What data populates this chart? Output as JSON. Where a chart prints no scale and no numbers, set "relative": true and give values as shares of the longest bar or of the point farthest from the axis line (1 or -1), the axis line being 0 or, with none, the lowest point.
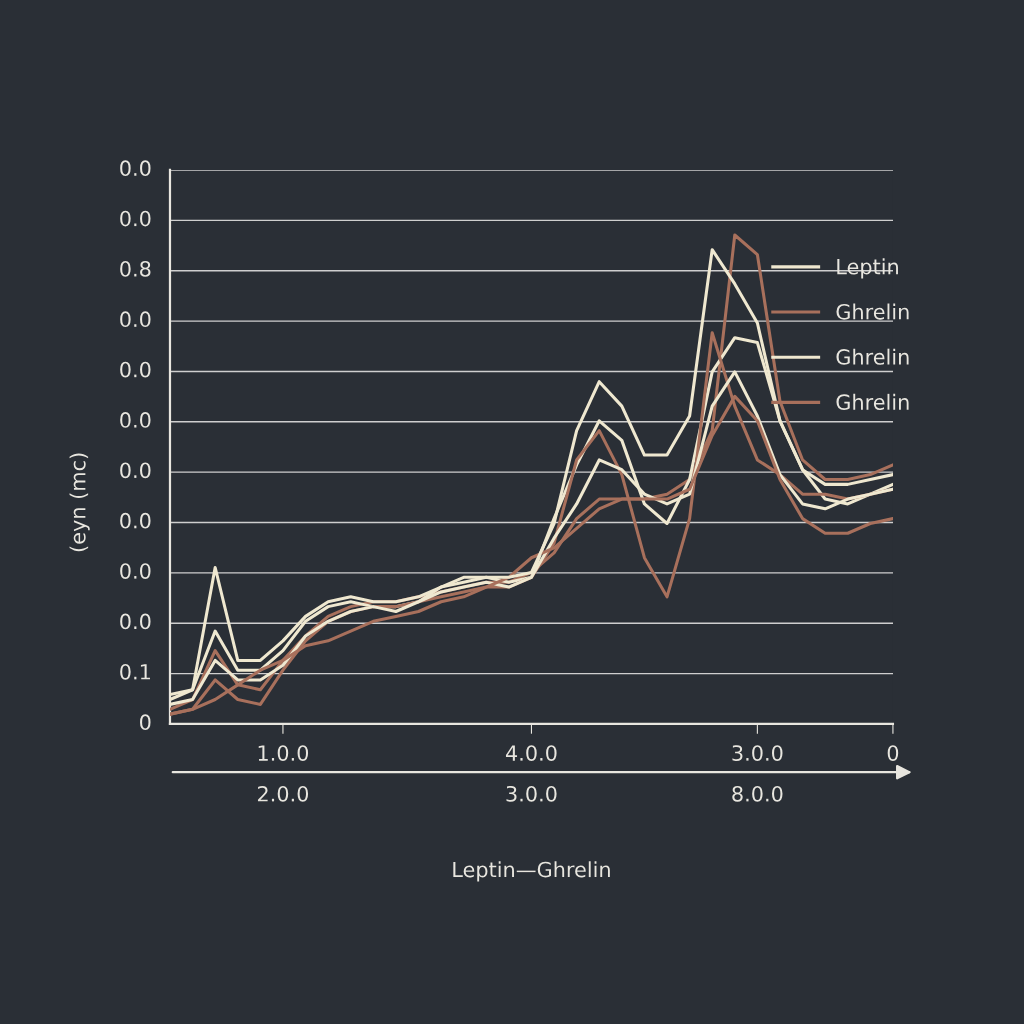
{
  "chart_data": {
    "type": "line",
    "relative": true,
    "xlabel": "Leptin—Ghrelin",
    "ylabel": "(eyn (mc)",
    "categories": [
      null,
      null,
      null,
      null,
      null,
      "1.0.0\n2.0.0",
      null,
      null,
      null,
      null,
      null,
      null,
      null,
      null,
      null,
      null,
      "4.0.0\n3.0.0",
      null,
      null,
      null,
      null,
      null,
      null,
      null,
      null,
      null,
      "3.0.0\n8.0.0",
      null,
      null,
      null,
      null,
      null,
      "0"
    ],
    "annotations": [
      "0.0",
      "0.0",
      "0.8",
      "0.0",
      "0.0",
      "0.0",
      "0.0",
      "0.0",
      "0.0",
      "0.0",
      "0.1",
      "0"
    ],
    "grid": "y",
    "legend": "right",
    "line_style": "solid",
    "marker": "none",
    "series": [
      {
        "name": "Leptin",
        "color": "#efe8d0",
        "values": [
          0.06,
          0.07,
          0.32,
          0.13,
          0.13,
          0.17,
          0.22,
          0.25,
          0.26,
          0.25,
          0.25,
          0.26,
          0.28,
          0.3,
          0.3,
          0.3,
          0.31,
          0.41,
          0.6,
          0.7,
          0.65,
          0.55,
          0.55,
          0.63,
          0.97,
          0.9,
          0.82,
          0.62,
          0.52,
          0.49,
          0.49,
          0.5,
          0.51
        ]
      },
      {
        "name": "Ghrelin",
        "color": "#a8705c",
        "values": [
          0.03,
          0.05,
          0.15,
          0.08,
          0.07,
          0.13,
          0.18,
          0.22,
          0.24,
          0.25,
          0.25,
          0.26,
          0.27,
          0.28,
          0.29,
          0.29,
          0.31,
          0.35,
          0.42,
          0.46,
          0.46,
          0.46,
          0.47,
          0.5,
          0.6,
          1.0,
          0.96,
          0.66,
          0.54,
          0.5,
          0.5,
          0.51,
          0.53
        ]
      },
      {
        "name": "Ghrelin",
        "color": "#efe8d0",
        "values": [
          0.05,
          0.07,
          0.19,
          0.11,
          0.11,
          0.15,
          0.21,
          0.24,
          0.25,
          0.24,
          0.24,
          0.25,
          0.28,
          0.29,
          0.3,
          0.29,
          0.3,
          0.42,
          0.53,
          0.62,
          0.58,
          0.45,
          0.41,
          0.5,
          0.72,
          0.79,
          0.78,
          0.62,
          0.52,
          0.46,
          0.45,
          0.47,
          0.49
        ]
      },
      {
        "name": "Ghrelin",
        "color": "#a8705c",
        "values": [
          0.02,
          0.03,
          0.09,
          0.05,
          0.04,
          0.11,
          0.17,
          0.21,
          0.23,
          0.24,
          0.24,
          0.25,
          0.26,
          0.27,
          0.28,
          0.28,
          0.3,
          0.37,
          0.54,
          0.6,
          0.51,
          0.34,
          0.26,
          0.42,
          0.8,
          0.65,
          0.54,
          0.51,
          0.47,
          0.47,
          0.46,
          0.47,
          0.48
        ]
      },
      {
        "color": "#efe8d0",
        "values": [
          0.04,
          0.05,
          0.13,
          0.09,
          0.09,
          0.12,
          0.18,
          0.21,
          0.23,
          0.24,
          0.23,
          0.25,
          0.27,
          0.28,
          0.29,
          0.28,
          0.3,
          0.38,
          0.45,
          0.54,
          0.52,
          0.47,
          0.45,
          0.47,
          0.65,
          0.72,
          0.63,
          0.51,
          0.45,
          0.44,
          0.46,
          0.47,
          0.48
        ]
      },
      {
        "color": "#a8705c",
        "values": [
          0.02,
          0.03,
          0.05,
          0.08,
          0.11,
          0.13,
          0.16,
          0.17,
          0.19,
          0.21,
          0.22,
          0.23,
          0.25,
          0.26,
          0.28,
          0.3,
          0.34,
          0.36,
          0.4,
          0.44,
          0.46,
          0.46,
          0.46,
          0.48,
          0.59,
          0.67,
          0.62,
          0.5,
          0.42,
          0.39,
          0.39,
          0.41,
          0.42
        ]
      }
    ]
  }
}
